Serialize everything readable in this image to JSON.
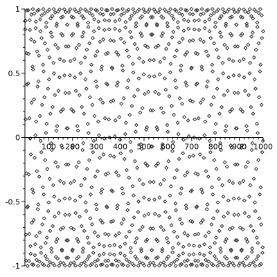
{
  "chart_data": {
    "type": "scatter",
    "title": "",
    "xlabel": "",
    "ylabel": "",
    "xlim": [
      0,
      1000
    ],
    "ylim": [
      -1,
      1
    ],
    "x_ticks": [
      100,
      200,
      300,
      400,
      500,
      600,
      700,
      800,
      900,
      1000
    ],
    "y_ticks": [
      1,
      0.5,
      0,
      -0.5,
      -1
    ],
    "x_tick_labels": [
      "100",
      "200",
      "300",
      "400",
      "500",
      "600",
      "700",
      "800",
      "900",
      "1000"
    ],
    "y_tick_labels": [
      "1",
      "0.5",
      "0",
      "-0.5",
      "-1"
    ],
    "marker": "diamond-outline",
    "marker_color": "#3c3c3c",
    "axis_color": "#000000",
    "grid": false,
    "series": [
      {
        "values_rule": "y = sin(n) for integer n = 1..1000",
        "x_range": [
          1,
          1000
        ],
        "function": "sin"
      }
    ]
  }
}
